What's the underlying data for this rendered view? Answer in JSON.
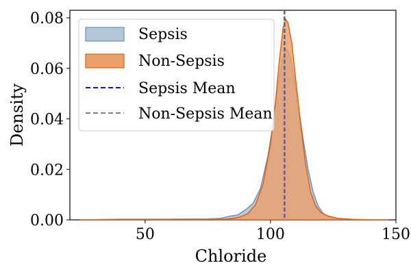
{
  "chart_data": {
    "type": "area",
    "xlabel": "Chloride",
    "ylabel": "Density",
    "xlim": [
      20,
      150
    ],
    "ylim": [
      0,
      0.083
    ],
    "xticks": [
      50,
      100,
      150
    ],
    "yticks": [
      0.0,
      0.02,
      0.04,
      0.06,
      0.08
    ],
    "xtick_labels": [
      "50",
      "100",
      "150"
    ],
    "ytick_labels": [
      "0.00",
      "0.02",
      "0.04",
      "0.06",
      "0.08"
    ],
    "legend_position": "top-left",
    "series": [
      {
        "name": "Sepsis",
        "fill": "#b4c6da",
        "stroke": "#6d8db5",
        "x": [
          24,
          40,
          60,
          75,
          80,
          84,
          87,
          90,
          93,
          96,
          99,
          101,
          103,
          104.5,
          106,
          107.5,
          109,
          111,
          113,
          115,
          117,
          119,
          121,
          124,
          128,
          132,
          140,
          147
        ],
        "y": [
          0,
          0.0003,
          0.0003,
          0.0004,
          0.0006,
          0.0015,
          0.002,
          0.004,
          0.0065,
          0.0125,
          0.0255,
          0.038,
          0.053,
          0.063,
          0.068,
          0.066,
          0.058,
          0.046,
          0.032,
          0.02,
          0.011,
          0.0055,
          0.0025,
          0.001,
          0.0003,
          0.0001,
          0,
          0
        ]
      },
      {
        "name": "Non-Sepsis",
        "fill": "#e9a06b",
        "stroke": "#d9610f",
        "x": [
          24,
          60,
          75,
          82,
          85,
          88,
          91,
          94,
          97,
          100,
          102,
          103.5,
          105,
          106,
          107,
          108.5,
          110,
          112,
          114,
          116,
          118,
          120,
          123,
          127,
          133,
          140,
          147
        ],
        "y": [
          0,
          0,
          0,
          0.0003,
          0.0006,
          0.0012,
          0.0025,
          0.006,
          0.014,
          0.03,
          0.047,
          0.063,
          0.076,
          0.0795,
          0.078,
          0.07,
          0.056,
          0.038,
          0.022,
          0.011,
          0.0055,
          0.003,
          0.0015,
          0.0006,
          0.0002,
          0,
          0
        ]
      }
    ],
    "mean_lines": [
      {
        "name": "Sepsis Mean",
        "x": 105.6,
        "color": "#0b10e0"
      },
      {
        "name": "Non-Sepsis Mean",
        "x": 105.4,
        "color": "#7f7f7f"
      }
    ]
  }
}
